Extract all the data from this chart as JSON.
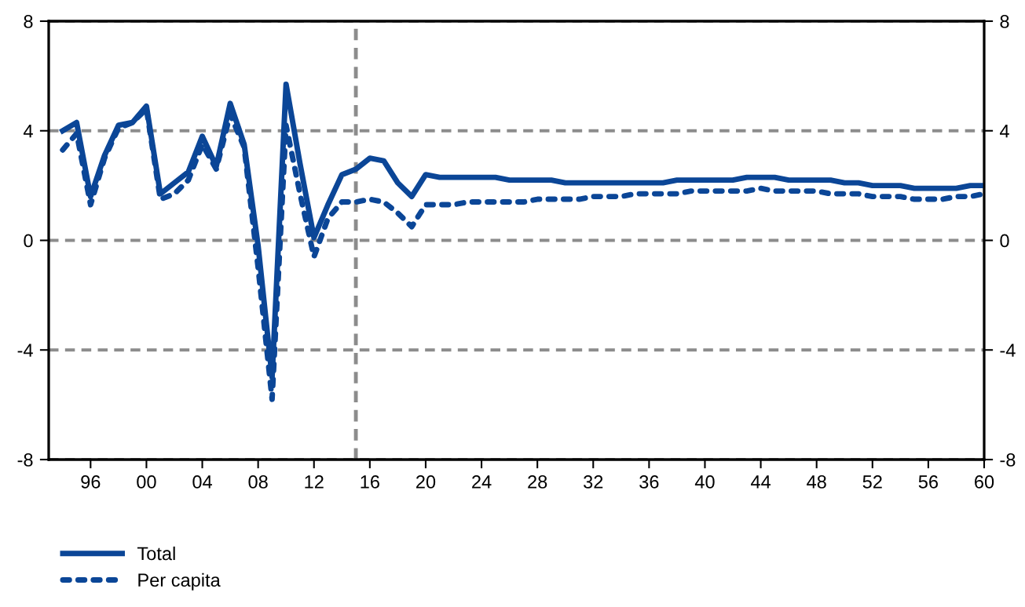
{
  "chart_data": {
    "type": "line",
    "x": [
      1994,
      1995,
      1996,
      1997,
      1998,
      1999,
      2000,
      2001,
      2002,
      2003,
      2004,
      2005,
      2006,
      2007,
      2008,
      2009,
      2010,
      2011,
      2012,
      2013,
      2014,
      2015,
      2016,
      2017,
      2018,
      2019,
      2020,
      2021,
      2022,
      2023,
      2024,
      2025,
      2026,
      2027,
      2028,
      2029,
      2030,
      2031,
      2032,
      2033,
      2034,
      2035,
      2036,
      2037,
      2038,
      2039,
      2040,
      2041,
      2042,
      2043,
      2044,
      2045,
      2046,
      2047,
      2048,
      2049,
      2050,
      2051,
      2052,
      2053,
      2054,
      2055,
      2056,
      2057,
      2058,
      2059,
      2060
    ],
    "series": [
      {
        "name": "Total",
        "color": "#0b4697",
        "line_style": "solid",
        "values": [
          4.0,
          4.3,
          1.6,
          3.1,
          4.2,
          4.3,
          4.9,
          1.7,
          2.1,
          2.5,
          3.8,
          2.7,
          5.0,
          3.5,
          -0.2,
          -5.0,
          5.7,
          2.8,
          0.1,
          1.3,
          2.4,
          2.6,
          3.0,
          2.9,
          2.1,
          1.6,
          2.4,
          2.3,
          2.3,
          2.3,
          2.3,
          2.3,
          2.2,
          2.2,
          2.2,
          2.2,
          2.1,
          2.1,
          2.1,
          2.1,
          2.1,
          2.1,
          2.1,
          2.1,
          2.2,
          2.2,
          2.2,
          2.2,
          2.2,
          2.3,
          2.3,
          2.3,
          2.2,
          2.2,
          2.2,
          2.2,
          2.1,
          2.1,
          2.0,
          2.0,
          2.0,
          1.9,
          1.9,
          1.9,
          1.9,
          2.0,
          2.0
        ]
      },
      {
        "name": "Per capita",
        "color": "#0b4697",
        "line_style": "dotted",
        "values": [
          3.3,
          3.9,
          1.3,
          3.0,
          4.1,
          4.3,
          4.8,
          1.5,
          1.7,
          2.2,
          3.5,
          2.6,
          4.6,
          3.4,
          -1.0,
          -5.8,
          4.2,
          1.7,
          -0.6,
          0.8,
          1.4,
          1.4,
          1.5,
          1.4,
          1.0,
          0.5,
          1.3,
          1.3,
          1.3,
          1.4,
          1.4,
          1.4,
          1.4,
          1.4,
          1.5,
          1.5,
          1.5,
          1.5,
          1.6,
          1.6,
          1.6,
          1.7,
          1.7,
          1.7,
          1.7,
          1.8,
          1.8,
          1.8,
          1.8,
          1.8,
          1.9,
          1.8,
          1.8,
          1.8,
          1.8,
          1.7,
          1.7,
          1.7,
          1.6,
          1.6,
          1.6,
          1.5,
          1.5,
          1.5,
          1.6,
          1.6,
          1.7
        ]
      }
    ],
    "xlim": [
      1993,
      2060
    ],
    "xticks": [
      {
        "value": 1996,
        "label": "96"
      },
      {
        "value": 2000,
        "label": "00"
      },
      {
        "value": 2004,
        "label": "04"
      },
      {
        "value": 2008,
        "label": "08"
      },
      {
        "value": 2012,
        "label": "12"
      },
      {
        "value": 2016,
        "label": "16"
      },
      {
        "value": 2020,
        "label": "20"
      },
      {
        "value": 2024,
        "label": "24"
      },
      {
        "value": 2028,
        "label": "28"
      },
      {
        "value": 2032,
        "label": "32"
      },
      {
        "value": 2036,
        "label": "36"
      },
      {
        "value": 2040,
        "label": "40"
      },
      {
        "value": 2044,
        "label": "44"
      },
      {
        "value": 2048,
        "label": "48"
      },
      {
        "value": 2052,
        "label": "52"
      },
      {
        "value": 2056,
        "label": "56"
      },
      {
        "value": 2060,
        "label": "60"
      }
    ],
    "ylim": [
      -8,
      8
    ],
    "yticks": [
      -8,
      -4,
      0,
      4,
      8
    ],
    "y2lim": [
      -8,
      8
    ],
    "y2ticks": [
      -8,
      -4,
      0,
      4,
      8
    ],
    "ref_lines": [
      {
        "axis": "x",
        "value": 2015,
        "color": "#8c8c8c",
        "line_style": "dashed"
      }
    ],
    "grid": "y",
    "legend": "bottom left"
  }
}
